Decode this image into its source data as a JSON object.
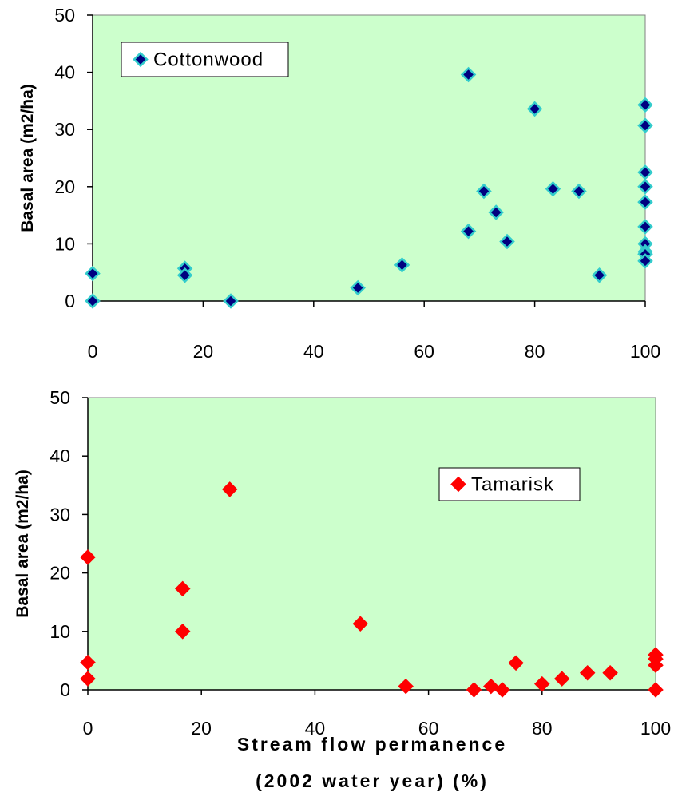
{
  "figure": {
    "xlabel_line1": "Stream flow permanence",
    "xlabel_line2": "(2002 water year) (%)"
  },
  "chart_data": [
    {
      "type": "scatter",
      "xlim": [
        0,
        100
      ],
      "ylim": [
        0,
        50
      ],
      "xticks": [
        "0",
        "20",
        "40",
        "60",
        "80",
        "100"
      ],
      "yticks": [
        "0",
        "10",
        "20",
        "30",
        "40",
        "50"
      ],
      "ylabel": "Basal area (m2/ha)",
      "xlabel": "",
      "legend": "top-left",
      "grid": false,
      "plot_bg": "#ccffcc",
      "series": [
        {
          "name": "Cottonwood",
          "marker": "diamond",
          "color": "#000080",
          "edge_color": "#33cccc",
          "x": [
            0,
            0,
            16.7,
            16.7,
            25,
            48,
            56,
            68,
            68,
            70.8,
            73,
            75,
            80,
            83.3,
            88,
            91.7,
            100,
            100,
            100,
            100,
            100,
            100,
            100,
            100,
            100,
            100
          ],
          "y": [
            4.8,
            0,
            5.7,
            4.5,
            0,
            2.3,
            6.3,
            39.6,
            12.2,
            19.2,
            15.5,
            10.4,
            33.6,
            19.6,
            19.2,
            4.5,
            34.3,
            30.7,
            22.5,
            20.0,
            17.3,
            13.0,
            10.0,
            8.6,
            8.2,
            7.0
          ]
        }
      ]
    },
    {
      "type": "scatter",
      "xlim": [
        0,
        100
      ],
      "ylim": [
        0,
        50
      ],
      "xticks": [
        "0",
        "20",
        "40",
        "60",
        "80",
        "100"
      ],
      "yticks": [
        "0",
        "10",
        "20",
        "30",
        "40",
        "50"
      ],
      "ylabel": "Basal area (m2/ha)",
      "xlabel": "Stream flow permanence (2002 water year) (%)",
      "legend": "top-right",
      "grid": false,
      "plot_bg": "#ccffcc",
      "series": [
        {
          "name": "Tamarisk",
          "marker": "diamond",
          "color": "#ff0000",
          "edge_color": "#ff0000",
          "x": [
            0,
            0,
            0,
            16.7,
            16.7,
            25,
            48,
            56,
            68,
            71,
            73,
            75.4,
            80,
            83.5,
            88,
            92,
            100,
            100,
            100,
            100
          ],
          "y": [
            22.7,
            4.7,
            1.9,
            17.3,
            10.0,
            34.3,
            11.3,
            0.6,
            0,
            0.6,
            0,
            4.6,
            1.0,
            1.9,
            2.9,
            2.9,
            6.0,
            5.3,
            4.2,
            0
          ]
        }
      ]
    }
  ]
}
